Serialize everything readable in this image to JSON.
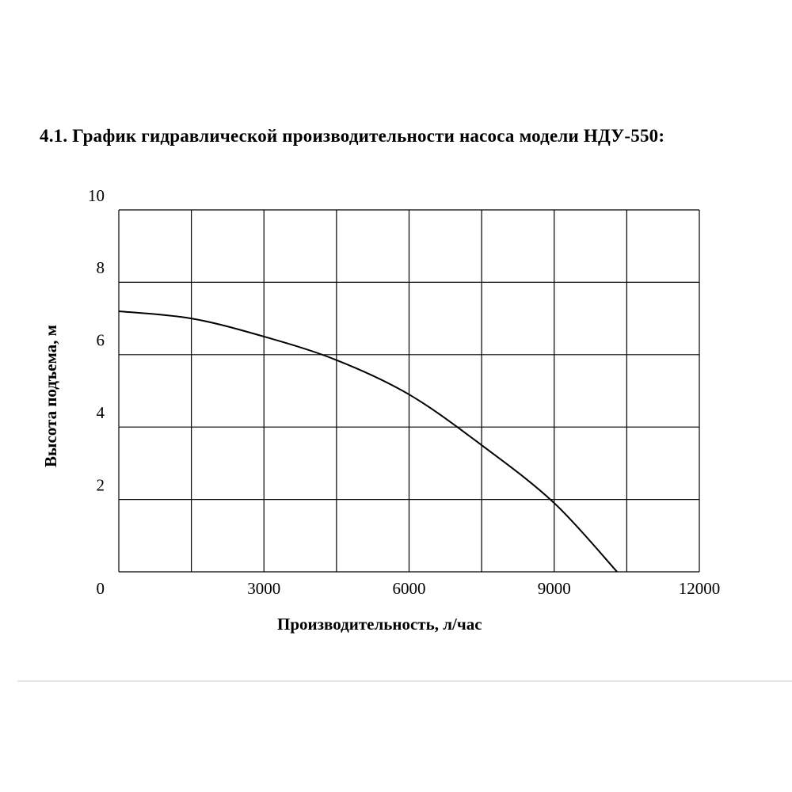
{
  "chart_data": {
    "type": "line",
    "title": "4.1. График гидравлической производительности насоса модели НДУ-550:",
    "x_label": "Производительность, л/час",
    "y_label": "Высота подъема, м",
    "x": [
      0,
      1500,
      3000,
      4500,
      6000,
      7500,
      9000,
      10300
    ],
    "series": [
      {
        "color": "#000000",
        "values": [
          7.2,
          7.0,
          6.5,
          5.85,
          4.9,
          3.5,
          1.9,
          0
        ]
      }
    ],
    "xlim": [
      0,
      12000
    ],
    "xticks": [
      3000,
      6000,
      9000,
      12000
    ],
    "xgrid_minor": [
      1500,
      4500,
      7500,
      10500
    ],
    "ylim": [
      0,
      10
    ],
    "yticks": [
      0,
      2,
      4,
      6,
      8,
      10
    ],
    "grid": true
  }
}
